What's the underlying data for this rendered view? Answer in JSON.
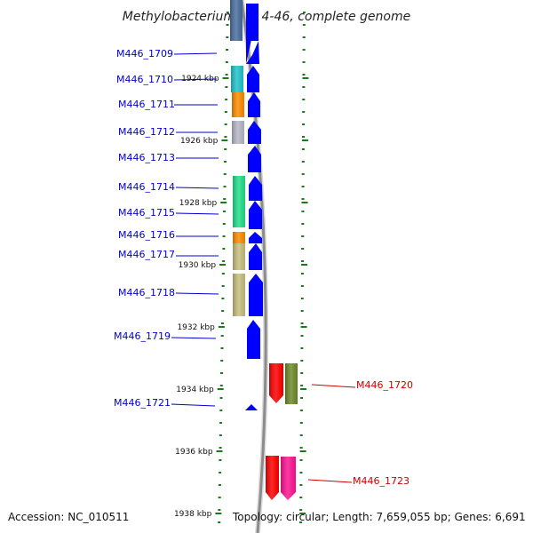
{
  "title": "Methylobacterium sp. 4-46, complete genome",
  "accession": "Accession: NC_010511",
  "summary": "Topology: circular; Length: 7,659,055 bp; Genes: 6,691",
  "kbp_labels": [
    "1924 kbp",
    "1926 kbp",
    "1928 kbp",
    "1930 kbp",
    "1932 kbp",
    "1934 kbp",
    "1936 kbp",
    "1938 kbp"
  ],
  "genes_left": [
    {
      "name": "M446_1709",
      "color": "#0000cc"
    },
    {
      "name": "M446_1710",
      "color": "#0000cc"
    },
    {
      "name": "M446_1711",
      "color": "#0000cc"
    },
    {
      "name": "M446_1712",
      "color": "#0000cc"
    },
    {
      "name": "M446_1713",
      "color": "#0000cc"
    },
    {
      "name": "M446_1714",
      "color": "#0000cc"
    },
    {
      "name": "M446_1715",
      "color": "#0000cc"
    },
    {
      "name": "M446_1716",
      "color": "#0000cc"
    },
    {
      "name": "M446_1717",
      "color": "#0000cc"
    },
    {
      "name": "M446_1718",
      "color": "#0000cc"
    },
    {
      "name": "M446_1719",
      "color": "#0000cc"
    },
    {
      "name": "M446_1721",
      "color": "#0000cc"
    }
  ],
  "genes_right": [
    {
      "name": "M446_1720",
      "color": "#cc0000"
    },
    {
      "name": "M446_1723",
      "color": "#cc0000"
    }
  ],
  "colors": {
    "forward_strand": "#0000ff",
    "reverse_strand": "#ff0000",
    "backbone": "#888888",
    "tick": "#1a7a1a",
    "cog_cyan": "#22c4cc",
    "cog_orange": "#ff8c00",
    "cog_grey": "#b8b8c8",
    "cog_green": "#22e08a",
    "cog_khaki": "#c8c080",
    "cog_olive": "#6e8b2a",
    "cog_magenta": "#ff1493",
    "cog_steel": "#4a6fa0"
  }
}
